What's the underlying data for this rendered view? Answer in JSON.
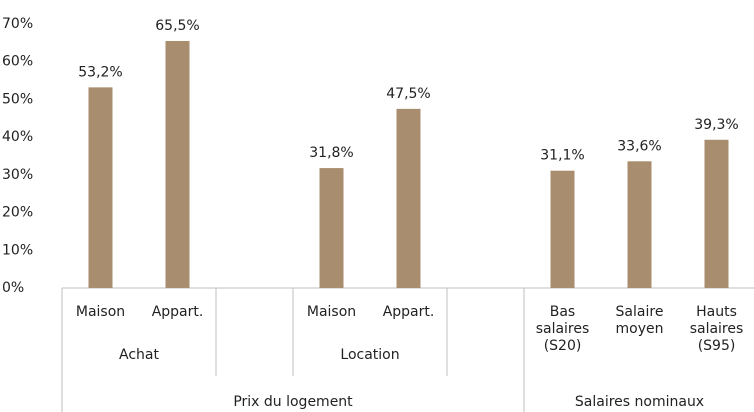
{
  "chart_data": {
    "type": "bar",
    "categories": [
      "Maison",
      "Appart.",
      null,
      "Maison",
      "Appart.",
      null,
      "Bas salaires (S20)",
      "Salaire moyen",
      "Hauts salaires (S95)"
    ],
    "subgroups": [
      "Achat",
      "Achat",
      null,
      "Location",
      "Location",
      null,
      null,
      null,
      null
    ],
    "groups": [
      "Prix du logement",
      "Prix du logement",
      "Prix du logement",
      "Prix du logement",
      "Prix du logement",
      "Prix du logement",
      "Salaires nominaux",
      "Salaires nominaux",
      "Salaires nominaux"
    ],
    "values": [
      53.2,
      65.5,
      null,
      31.8,
      47.5,
      null,
      31.1,
      33.6,
      39.3
    ],
    "value_labels": [
      "53,2%",
      "65,5%",
      null,
      "31,8%",
      "47,5%",
      null,
      "31,1%",
      "33,6%",
      "39,3%"
    ],
    "color": "#a88e6e",
    "ylim": [
      0,
      70
    ],
    "yticks": [
      {
        "value": 0,
        "label": "0%"
      },
      {
        "value": 10,
        "label": "10%"
      },
      {
        "value": 20,
        "label": "20%"
      },
      {
        "value": 30,
        "label": "30%"
      },
      {
        "value": 40,
        "label": "40%"
      },
      {
        "value": 50,
        "label": "50%"
      },
      {
        "value": 60,
        "label": "60%"
      },
      {
        "value": 70,
        "label": "70%"
      }
    ],
    "grid": false
  }
}
